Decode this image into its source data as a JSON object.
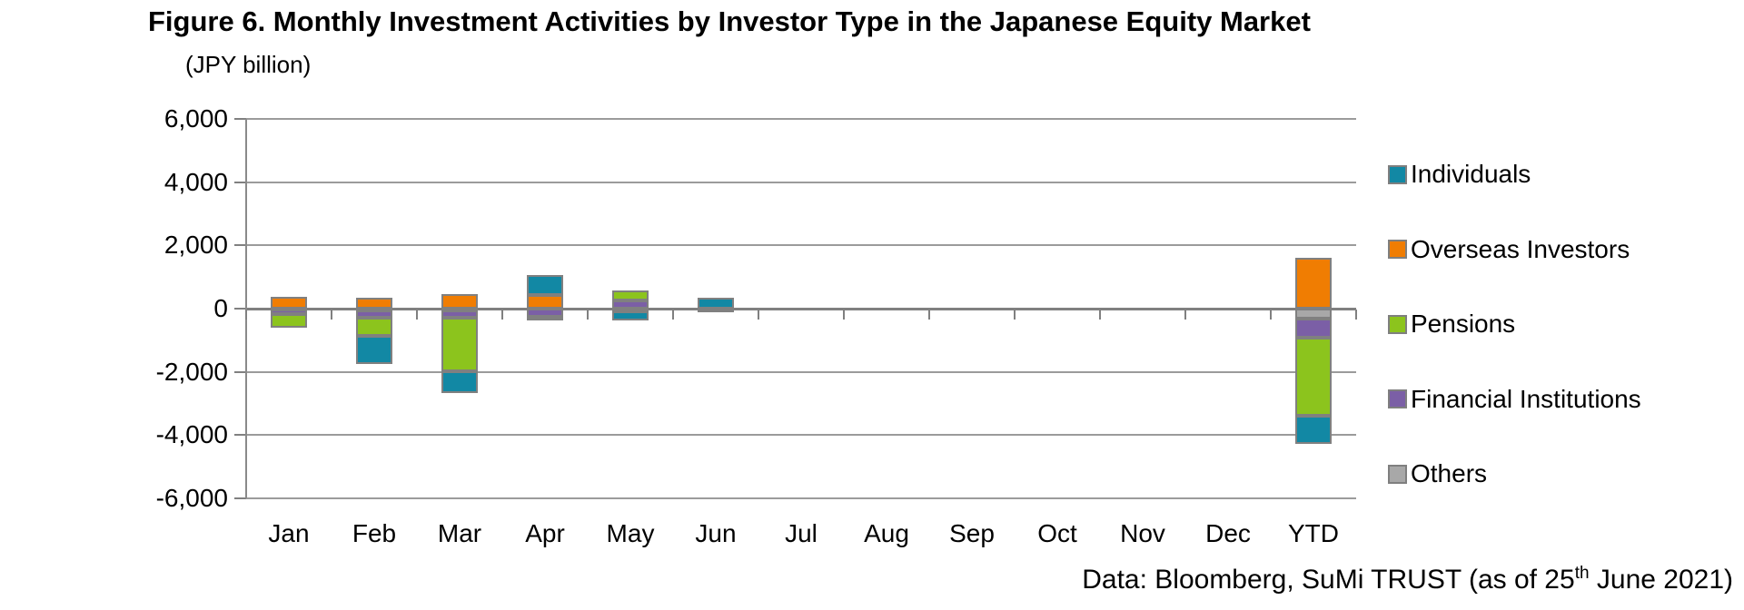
{
  "title": "Figure 6. Monthly Investment Activities by Investor Type in the Japanese Equity Market",
  "unit_label": "(JPY billion)",
  "footer": {
    "prefix": "Data: Bloomberg, SuMi TRUST (as of 25",
    "superscript": "th",
    "suffix": " June 2021)"
  },
  "colors": {
    "individuals": "#1288A4",
    "overseas_investors": "#F07D02",
    "pensions": "#8CC41D",
    "financial_institutions": "#7B5FA6",
    "others": "#A8A8A8",
    "bar_border": "#808080",
    "gridline": "#9B9B9B",
    "axis": "#808080"
  },
  "chart_data": {
    "type": "bar",
    "stacked": true,
    "title": "Figure 6. Monthly Investment Activities by Investor Type in the Japanese Equity Market",
    "ylabel": "(JPY billion)",
    "xlabel": "",
    "ylim": [
      -6000,
      6000
    ],
    "ytick_interval": 2000,
    "ytick_labels": [
      "6,000",
      "4,000",
      "2,000",
      "0",
      "-2,000",
      "-4,000",
      "-6,000"
    ],
    "grid": true,
    "legend_position": "right",
    "stack_order": "last-series-nearest-zero",
    "categories": [
      "Jan",
      "Feb",
      "Mar",
      "Apr",
      "May",
      "Jun",
      "Jul",
      "Aug",
      "Sep",
      "Oct",
      "Nov",
      "Dec",
      "YTD"
    ],
    "series": [
      {
        "name": "Individuals",
        "color": "#1288A4",
        "values": [
          0,
          -900,
          -680,
          640,
          -280,
          350,
          0,
          0,
          0,
          0,
          0,
          0,
          -870
        ]
      },
      {
        "name": "Overseas Investors",
        "color": "#F07D02",
        "values": [
          380,
          350,
          450,
          430,
          0,
          0,
          0,
          0,
          0,
          0,
          0,
          0,
          1610
        ]
      },
      {
        "name": "Pensions",
        "color": "#8CC41D",
        "values": [
          -420,
          -560,
          -1700,
          -120,
          330,
          0,
          0,
          0,
          0,
          0,
          0,
          0,
          -2470
        ]
      },
      {
        "name": "Financial Institutions",
        "color": "#7B5FA6",
        "values": [
          -150,
          -230,
          -230,
          -250,
          250,
          0,
          0,
          0,
          0,
          0,
          0,
          0,
          -610
        ]
      },
      {
        "name": "Others",
        "color": "#A8A8A8",
        "values": [
          -30,
          -60,
          -50,
          0,
          -80,
          -100,
          0,
          0,
          0,
          0,
          0,
          0,
          -320
        ]
      }
    ]
  }
}
